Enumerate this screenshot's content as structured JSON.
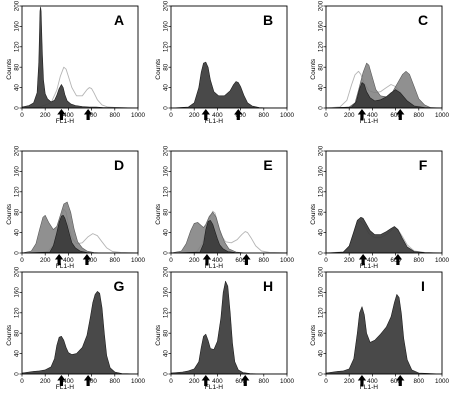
{
  "figure": {
    "background": "#ffffff",
    "colors": {
      "frame": "#000000",
      "dark_fill": "#3a3a3a",
      "mid_fill": "#7c7c7c",
      "light_line": "#b5b5b5",
      "arrow": "#000000"
    }
  },
  "chart_data": [
    {
      "panel": "A",
      "type": "area",
      "xlabel": "FL1-H",
      "ylabel": "Counts",
      "xlim": [
        0,
        1000
      ],
      "ylim": [
        0,
        200
      ],
      "x_ticks": [
        "0",
        "200",
        "400",
        "600",
        "800",
        "1000"
      ],
      "y_ticks": [
        "0",
        "40",
        "80",
        "120",
        "160",
        "200"
      ],
      "arrows_x": [
        340,
        570
      ],
      "series": [
        {
          "style": "dark",
          "x": [
            0,
            60,
            100,
            130,
            145,
            155,
            160,
            165,
            175,
            185,
            200,
            220,
            250,
            280,
            300,
            320,
            340,
            355,
            370,
            390,
            420,
            460,
            520,
            580,
            640,
            700,
            800,
            1000
          ],
          "y": [
            2,
            5,
            10,
            30,
            90,
            190,
            198,
            190,
            110,
            55,
            28,
            18,
            12,
            15,
            25,
            38,
            46,
            40,
            26,
            14,
            8,
            5,
            3,
            2,
            2,
            1,
            1,
            0
          ]
        },
        {
          "style": "light",
          "x": [
            0,
            150,
            250,
            300,
            330,
            360,
            380,
            400,
            430,
            470,
            520,
            560,
            580,
            600,
            620,
            650,
            690,
            740,
            800,
            1000
          ],
          "y": [
            0,
            2,
            10,
            35,
            62,
            80,
            76,
            62,
            40,
            24,
            24,
            36,
            40,
            38,
            30,
            16,
            6,
            2,
            1,
            0
          ]
        }
      ]
    },
    {
      "panel": "B",
      "type": "area",
      "xlabel": "FL1-H",
      "ylabel": "Counts",
      "xlim": [
        0,
        1000
      ],
      "ylim": [
        0,
        200
      ],
      "x_ticks": [
        "0",
        "200",
        "400",
        "600",
        "800",
        "1000"
      ],
      "y_ticks": [
        "0",
        "40",
        "80",
        "120",
        "160",
        "200"
      ],
      "arrows_x": [
        300,
        580
      ],
      "series": [
        {
          "style": "dark",
          "x": [
            0,
            150,
            200,
            240,
            260,
            280,
            300,
            320,
            340,
            370,
            410,
            460,
            510,
            540,
            560,
            580,
            600,
            630,
            660,
            700,
            760,
            850,
            1000
          ],
          "y": [
            0,
            2,
            10,
            40,
            70,
            88,
            90,
            80,
            55,
            32,
            24,
            24,
            34,
            46,
            52,
            50,
            42,
            24,
            10,
            4,
            1,
            0,
            0
          ]
        }
      ]
    },
    {
      "panel": "C",
      "type": "area",
      "xlabel": "FL1-H",
      "ylabel": "Counts",
      "xlim": [
        0,
        1000
      ],
      "ylim": [
        0,
        200
      ],
      "x_ticks": [
        "0",
        "200",
        "400",
        "600",
        "800",
        "1000"
      ],
      "y_ticks": [
        "0",
        "40",
        "80",
        "120",
        "160",
        "200"
      ],
      "arrows_x": [
        310,
        640
      ],
      "series": [
        {
          "style": "light",
          "x": [
            0,
            120,
            180,
            220,
            250,
            280,
            300,
            330,
            370,
            420,
            470,
            520,
            560,
            600,
            650,
            700,
            760,
            850,
            1000
          ],
          "y": [
            0,
            2,
            15,
            45,
            65,
            72,
            66,
            48,
            34,
            30,
            32,
            40,
            46,
            42,
            28,
            14,
            5,
            1,
            0
          ]
        },
        {
          "style": "mid",
          "x": [
            0,
            200,
            250,
            280,
            320,
            350,
            370,
            400,
            430,
            470,
            520,
            570,
            620,
            660,
            690,
            720,
            760,
            800,
            850,
            900,
            1000
          ],
          "y": [
            0,
            2,
            10,
            35,
            70,
            88,
            84,
            60,
            36,
            24,
            22,
            30,
            50,
            66,
            72,
            66,
            42,
            18,
            6,
            1,
            0
          ]
        },
        {
          "style": "dark",
          "x": [
            0,
            220,
            260,
            290,
            310,
            330,
            350,
            380,
            420,
            470,
            520,
            560,
            600,
            640,
            700,
            760,
            850,
            1000
          ],
          "y": [
            0,
            2,
            12,
            38,
            50,
            46,
            32,
            20,
            14,
            16,
            22,
            30,
            36,
            30,
            14,
            4,
            1,
            0
          ]
        }
      ]
    },
    {
      "panel": "D",
      "type": "area",
      "xlabel": "FL1-H",
      "ylabel": "Counts",
      "xlim": [
        0,
        1000
      ],
      "ylim": [
        0,
        200
      ],
      "x_ticks": [
        "0",
        "200",
        "400",
        "600",
        "800",
        "1000"
      ],
      "y_ticks": [
        "0",
        "40",
        "80",
        "120",
        "160",
        "200"
      ],
      "arrows_x": [
        320,
        560
      ],
      "series": [
        {
          "style": "light",
          "x": [
            0,
            220,
            280,
            310,
            340,
            360,
            380,
            400,
            430,
            470,
            520,
            570,
            610,
            650,
            690,
            730,
            780,
            850,
            1000
          ],
          "y": [
            0,
            2,
            18,
            48,
            72,
            86,
            80,
            56,
            30,
            18,
            20,
            32,
            38,
            34,
            22,
            10,
            3,
            1,
            0
          ]
        },
        {
          "style": "mid",
          "x": [
            0,
            80,
            120,
            150,
            180,
            200,
            230,
            270,
            300,
            330,
            360,
            390,
            420,
            450,
            480,
            520,
            560,
            620,
            700,
            1000
          ],
          "y": [
            0,
            4,
            18,
            45,
            70,
            74,
            60,
            46,
            52,
            74,
            96,
            100,
            80,
            46,
            22,
            10,
            4,
            1,
            0,
            0
          ]
        },
        {
          "style": "dark",
          "x": [
            0,
            240,
            270,
            300,
            320,
            340,
            355,
            370,
            390,
            410,
            430,
            460,
            500,
            560,
            650,
            1000
          ],
          "y": [
            0,
            2,
            14,
            40,
            60,
            72,
            74,
            68,
            54,
            36,
            20,
            10,
            4,
            1,
            0,
            0
          ]
        }
      ]
    },
    {
      "panel": "E",
      "type": "area",
      "xlabel": "FL1-H",
      "ylabel": "Counts",
      "xlim": [
        0,
        1000
      ],
      "ylim": [
        0,
        200
      ],
      "x_ticks": [
        "0",
        "200",
        "400",
        "600",
        "800",
        "1000"
      ],
      "y_ticks": [
        "0",
        "40",
        "80",
        "120",
        "160",
        "200"
      ],
      "arrows_x": [
        310,
        650
      ],
      "series": [
        {
          "style": "light",
          "x": [
            0,
            220,
            270,
            300,
            330,
            360,
            380,
            400,
            430,
            470,
            520,
            570,
            610,
            640,
            660,
            690,
            730,
            780,
            850,
            1000
          ],
          "y": [
            0,
            2,
            18,
            44,
            68,
            82,
            78,
            60,
            36,
            22,
            20,
            26,
            36,
            42,
            40,
            30,
            14,
            4,
            1,
            0
          ]
        },
        {
          "style": "mid",
          "x": [
            0,
            90,
            130,
            170,
            200,
            230,
            260,
            280,
            300,
            330,
            360,
            390,
            420,
            460,
            500,
            560,
            650,
            1000
          ],
          "y": [
            0,
            4,
            18,
            44,
            58,
            60,
            54,
            50,
            56,
            72,
            80,
            70,
            46,
            22,
            8,
            2,
            0,
            0
          ]
        },
        {
          "style": "dark",
          "x": [
            0,
            250,
            280,
            300,
            320,
            340,
            360,
            380,
            400,
            420,
            450,
            490,
            550,
            650,
            1000
          ],
          "y": [
            0,
            2,
            18,
            46,
            62,
            64,
            56,
            42,
            28,
            16,
            8,
            3,
            1,
            0,
            0
          ]
        }
      ]
    },
    {
      "panel": "F",
      "type": "area",
      "xlabel": "FL1-H",
      "ylabel": "Counts",
      "xlim": [
        0,
        1000
      ],
      "ylim": [
        0,
        200
      ],
      "x_ticks": [
        "0",
        "200",
        "400",
        "600",
        "800",
        "1000"
      ],
      "y_ticks": [
        "0",
        "40",
        "80",
        "120",
        "160",
        "200"
      ],
      "arrows_x": [
        320,
        620
      ],
      "series": [
        {
          "style": "light",
          "x": [
            0,
            150,
            200,
            240,
            270,
            300,
            330,
            370,
            420,
            470,
            520,
            560,
            590,
            620,
            660,
            700,
            760,
            850,
            1000
          ],
          "y": [
            0,
            2,
            12,
            40,
            60,
            62,
            54,
            38,
            30,
            30,
            36,
            44,
            50,
            46,
            32,
            16,
            4,
            1,
            0
          ]
        },
        {
          "style": "dark",
          "x": [
            0,
            150,
            200,
            240,
            270,
            300,
            320,
            350,
            380,
            420,
            470,
            520,
            560,
            590,
            620,
            660,
            700,
            760,
            850,
            1000
          ],
          "y": [
            0,
            2,
            14,
            42,
            64,
            70,
            68,
            56,
            44,
            36,
            36,
            42,
            48,
            52,
            46,
            28,
            12,
            3,
            1,
            0
          ]
        }
      ]
    },
    {
      "panel": "G",
      "type": "area",
      "xlabel": "FL1-H",
      "ylabel": "Counts",
      "xlim": [
        0,
        1000
      ],
      "ylim": [
        0,
        200
      ],
      "x_ticks": [
        "0",
        "200",
        "400",
        "600",
        "800",
        "1000"
      ],
      "y_ticks": [
        "0",
        "40",
        "80",
        "120",
        "160",
        "200"
      ],
      "arrows_x": [
        340,
        570
      ],
      "series": [
        {
          "style": "dark",
          "x": [
            0,
            100,
            150,
            200,
            250,
            280,
            300,
            320,
            340,
            360,
            380,
            400,
            430,
            470,
            520,
            560,
            590,
            610,
            630,
            650,
            670,
            690,
            710,
            730,
            760,
            800,
            860,
            1000
          ],
          "y": [
            2,
            5,
            6,
            8,
            14,
            30,
            56,
            72,
            74,
            66,
            52,
            42,
            38,
            40,
            52,
            76,
            112,
            140,
            156,
            162,
            158,
            130,
            78,
            36,
            12,
            4,
            1,
            0
          ]
        }
      ]
    },
    {
      "panel": "H",
      "type": "area",
      "xlabel": "FL1-H",
      "ylabel": "Counts",
      "xlim": [
        0,
        1000
      ],
      "ylim": [
        0,
        200
      ],
      "x_ticks": [
        "0",
        "200",
        "400",
        "600",
        "800",
        "1000"
      ],
      "y_ticks": [
        "0",
        "40",
        "80",
        "120",
        "160",
        "200"
      ],
      "arrows_x": [
        300,
        640
      ],
      "series": [
        {
          "style": "dark",
          "x": [
            0,
            100,
            150,
            200,
            240,
            260,
            280,
            300,
            320,
            340,
            370,
            400,
            430,
            450,
            470,
            490,
            510,
            530,
            550,
            580,
            620,
            680,
            760,
            1000
          ],
          "y": [
            2,
            4,
            6,
            10,
            24,
            52,
            74,
            78,
            66,
            50,
            48,
            64,
            110,
            160,
            182,
            172,
            120,
            60,
            24,
            8,
            3,
            1,
            0,
            0
          ]
        }
      ]
    },
    {
      "panel": "I",
      "type": "area",
      "xlabel": "FL1-H",
      "ylabel": "Counts",
      "xlim": [
        0,
        1000
      ],
      "ylim": [
        0,
        200
      ],
      "x_ticks": [
        "0",
        "200",
        "400",
        "600",
        "800",
        "1000"
      ],
      "y_ticks": [
        "0",
        "40",
        "80",
        "120",
        "160",
        "200"
      ],
      "arrows_x": [
        310,
        640
      ],
      "series": [
        {
          "style": "dark",
          "x": [
            0,
            100,
            150,
            200,
            240,
            270,
            290,
            310,
            330,
            350,
            380,
            420,
            470,
            520,
            560,
            590,
            610,
            630,
            650,
            670,
            700,
            740,
            800,
            1000
          ],
          "y": [
            2,
            5,
            6,
            10,
            30,
            80,
            120,
            132,
            116,
            80,
            62,
            66,
            78,
            92,
            112,
            140,
            156,
            150,
            118,
            70,
            28,
            8,
            2,
            0
          ]
        }
      ]
    }
  ]
}
